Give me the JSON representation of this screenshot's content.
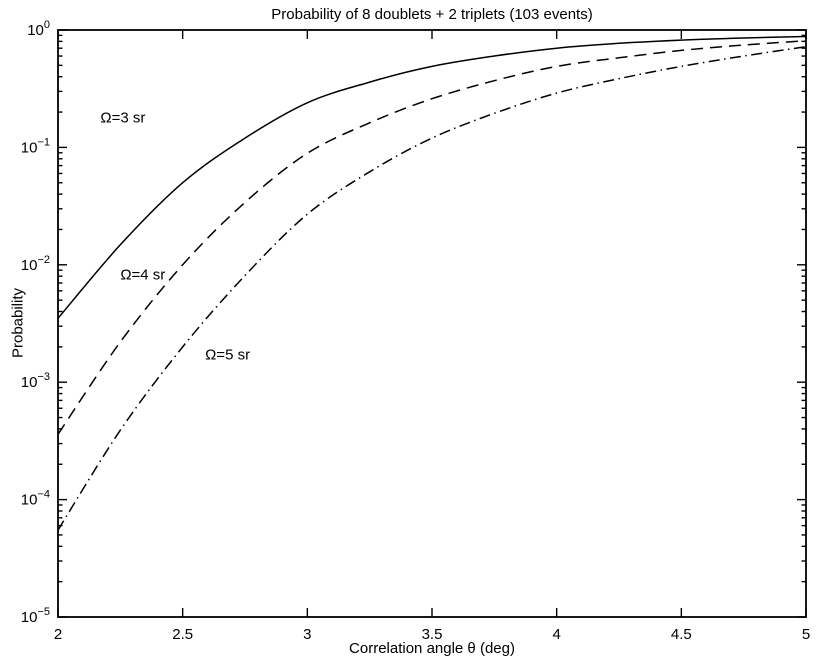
{
  "figure": {
    "background": "#ffffff",
    "foreground": "#000000"
  },
  "chart_data": {
    "type": "line",
    "title": "Probability of 8 doublets + 2 triplets (103 events)",
    "xlabel": "Correlation angle θ (deg)",
    "ylabel": "Probability",
    "xlim": [
      2,
      5
    ],
    "ylim": [
      1e-05,
      1
    ],
    "yscale": "log",
    "grid": false,
    "legend": "none",
    "xticks": [
      2,
      2.5,
      3,
      3.5,
      4,
      4.5,
      5
    ],
    "xtick_labels": [
      "2",
      "2.5",
      "3",
      "3.5",
      "4",
      "4.5",
      "5"
    ],
    "ytick_exponents": [
      0,
      -1,
      -2,
      -3,
      -4,
      -5
    ],
    "x": [
      2,
      2.25,
      2.5,
      2.75,
      3,
      3.25,
      3.5,
      3.75,
      4,
      4.25,
      4.5,
      4.75,
      5
    ],
    "series": [
      {
        "name": "Ω=3 sr",
        "style": "solid",
        "color": "#000000",
        "values": [
          0.0035,
          0.0148,
          0.05,
          0.12,
          0.24,
          0.36,
          0.49,
          0.6,
          0.7,
          0.77,
          0.82,
          0.855,
          0.88
        ]
      },
      {
        "name": "Ω=4 sr",
        "style": "dashed",
        "color": "#000000",
        "values": [
          0.00036,
          0.0022,
          0.01,
          0.034,
          0.089,
          0.162,
          0.26,
          0.37,
          0.49,
          0.58,
          0.67,
          0.745,
          0.81
        ]
      },
      {
        "name": "Ω=5 sr",
        "style": "dashdot",
        "color": "#000000",
        "values": [
          5.5e-05,
          0.00039,
          0.002,
          0.0081,
          0.027,
          0.062,
          0.12,
          0.195,
          0.29,
          0.385,
          0.49,
          0.6,
          0.72
        ]
      }
    ],
    "annotations": [
      {
        "label": "Ω=3 sr",
        "x": 2.17,
        "y": 0.178
      },
      {
        "label": "Ω=4 sr",
        "x": 2.25,
        "y": 0.0082
      },
      {
        "label": "Ω=5 sr",
        "x": 2.59,
        "y": 0.0017
      }
    ]
  }
}
